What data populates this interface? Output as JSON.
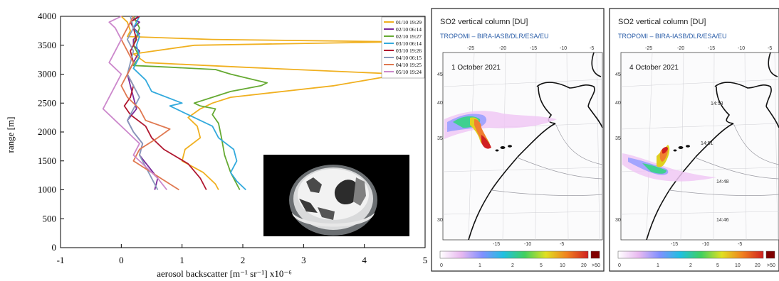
{
  "chart_data": [
    {
      "type": "line",
      "xlabel": "aerosol backscatter [m⁻¹ sr⁻¹]   x10⁻⁶",
      "ylabel": "range [m]",
      "xlim": [
        -1,
        5
      ],
      "ylim": [
        0,
        4000
      ],
      "xticks": [
        "-1",
        "0",
        "1",
        "2",
        "3",
        "4",
        "5"
      ],
      "yticks": [
        "0",
        "500",
        "1000",
        "1500",
        "2000",
        "2500",
        "3000",
        "3500",
        "4000"
      ],
      "legend_position": "top-right",
      "series": [
        {
          "name": "01/10 19:29",
          "color": "#f0b020",
          "x": [
            1.6,
            1.55,
            1.35,
            1.0,
            1.05,
            1.3,
            1.25,
            1.1,
            1.3,
            1.5,
            1.8,
            3.5,
            4.6,
            2.0,
            0.4,
            0.2,
            1.2,
            3.5,
            4.6,
            1.5,
            0.1,
            0.15,
            0.1,
            0.0
          ],
          "y": [
            1000,
            1100,
            1300,
            1500,
            1700,
            1900,
            2100,
            2250,
            2400,
            2500,
            2600,
            2800,
            3000,
            3120,
            3200,
            3350,
            3500,
            3540,
            3560,
            3600,
            3650,
            3750,
            3900,
            4000
          ]
        },
        {
          "name": "02/10 06:14",
          "color": "#7a2a9a",
          "x": [
            0.55,
            0.6,
            0.45,
            0.3,
            0.35,
            0.2,
            0.1,
            0.25,
            0.2,
            0.15,
            0.1,
            0.2,
            0.3,
            0.2,
            0.2,
            0.3,
            0.2,
            0.3,
            0.2,
            0.3
          ],
          "y": [
            1000,
            1200,
            1400,
            1600,
            1800,
            2000,
            2200,
            2400,
            2600,
            2800,
            3000,
            3200,
            3400,
            3500,
            3600,
            3700,
            3800,
            3900,
            3950,
            4000
          ]
        },
        {
          "name": "02/10 19:27",
          "color": "#66aa33",
          "x": [
            1.95,
            1.8,
            1.7,
            1.65,
            1.6,
            1.5,
            1.55,
            1.3,
            1.2,
            1.5,
            1.8,
            2.3,
            2.4,
            2.2,
            1.8,
            1.55,
            0.8,
            0.2,
            0.3,
            0.2,
            0.3,
            0.2
          ],
          "y": [
            1000,
            1300,
            1600,
            1900,
            2150,
            2300,
            2400,
            2450,
            2500,
            2600,
            2700,
            2800,
            2850,
            2900,
            3000,
            3080,
            3120,
            3150,
            3300,
            3500,
            3800,
            4000
          ]
        },
        {
          "name": "03/10 06:14",
          "color": "#33aadd",
          "x": [
            2.05,
            1.9,
            1.8,
            1.9,
            1.85,
            1.6,
            1.5,
            1.1,
            0.8,
            1.0,
            0.5,
            0.4,
            0.2,
            0.3,
            0.25,
            0.3,
            0.2,
            0.25,
            0.3
          ],
          "y": [
            1000,
            1150,
            1300,
            1500,
            1700,
            1900,
            2100,
            2300,
            2450,
            2500,
            2700,
            2900,
            3100,
            3300,
            3500,
            3650,
            3800,
            3900,
            4000
          ]
        },
        {
          "name": "03/10 19:26",
          "color": "#b01830",
          "x": [
            1.4,
            1.3,
            1.1,
            0.7,
            0.5,
            0.4,
            0.15,
            0.05,
            0.15,
            0.2,
            0.1,
            0.2,
            0.15,
            0.25,
            0.2,
            0.15,
            0.3
          ],
          "y": [
            1000,
            1200,
            1450,
            1700,
            1900,
            2100,
            2300,
            2450,
            2600,
            2800,
            3000,
            3200,
            3400,
            3600,
            3800,
            3900,
            4000
          ]
        },
        {
          "name": "04/10 06:15",
          "color": "#8899bb",
          "x": [
            0.6,
            0.5,
            0.4,
            0.3,
            0.35,
            0.2,
            0.1,
            0.2,
            0.3,
            0.2,
            0.1,
            0.15,
            0.2,
            0.1,
            0.2,
            0.15
          ],
          "y": [
            1000,
            1200,
            1400,
            1600,
            1800,
            2000,
            2200,
            2400,
            2600,
            2800,
            3000,
            3200,
            3400,
            3600,
            3800,
            4000
          ]
        },
        {
          "name": "04/10 19:25",
          "color": "#e07850",
          "x": [
            0.95,
            0.8,
            0.5,
            0.2,
            0.3,
            0.6,
            0.8,
            0.4,
            0.3,
            0.1,
            0.0,
            0.1,
            0.2,
            0.1,
            0.0,
            0.1,
            0.2
          ],
          "y": [
            1000,
            1100,
            1300,
            1500,
            1700,
            1900,
            2050,
            2200,
            2400,
            2600,
            2800,
            3000,
            3200,
            3400,
            3600,
            3800,
            4000
          ]
        },
        {
          "name": "05/10 19:24",
          "color": "#cc88cc",
          "x": [
            0.75,
            0.6,
            0.4,
            0.2,
            0.3,
            0.1,
            -0.1,
            -0.3,
            -0.2,
            -0.1,
            0.0,
            -0.2,
            -0.1,
            0.0,
            -0.1,
            -0.2,
            0.0
          ],
          "y": [
            1000,
            1200,
            1400,
            1600,
            1800,
            2000,
            2200,
            2400,
            2600,
            2800,
            3000,
            3200,
            3400,
            3600,
            3800,
            3900,
            4000
          ]
        }
      ]
    }
  ],
  "maps": [
    {
      "title": "SO2 vertical column [DU]",
      "subtitle": "TROPOMI  –  BIRA-IASB/DLR/ESA/EU",
      "date": "1 October 2021",
      "top_ticks": [
        "-25",
        "-20",
        "-15",
        "-10",
        "-5"
      ],
      "bottom_ticks": [
        "-15",
        "-10",
        "-5"
      ],
      "left_ticks": [
        "45",
        "40",
        "35",
        "30"
      ],
      "time_labels": [],
      "colorbar_ticks": [
        "0",
        "1",
        "2",
        "5",
        "10",
        "20",
        ">50"
      ]
    },
    {
      "title": "SO2 vertical column [DU]",
      "subtitle": "TROPOMI  –  BIRA-IASB/DLR/ESA/EU",
      "date": "4 October 2021",
      "top_ticks": [
        "-25",
        "-20",
        "-15",
        "-10",
        "-5"
      ],
      "bottom_ticks": [
        "-15",
        "-10",
        "-5"
      ],
      "left_ticks": [
        "45",
        "40",
        "35",
        "30"
      ],
      "time_labels": [
        "14:53",
        "14:51",
        "14:48",
        "14:46"
      ],
      "colorbar_ticks": [
        "0",
        "1",
        "2",
        "5",
        "10",
        "20",
        ">50"
      ]
    }
  ],
  "colors": {
    "colorbar": [
      "#ffffff",
      "#e8b8f0",
      "#8090ff",
      "#20c0e0",
      "#40d060",
      "#e0e020",
      "#f08020",
      "#d02020",
      "#800000"
    ]
  }
}
